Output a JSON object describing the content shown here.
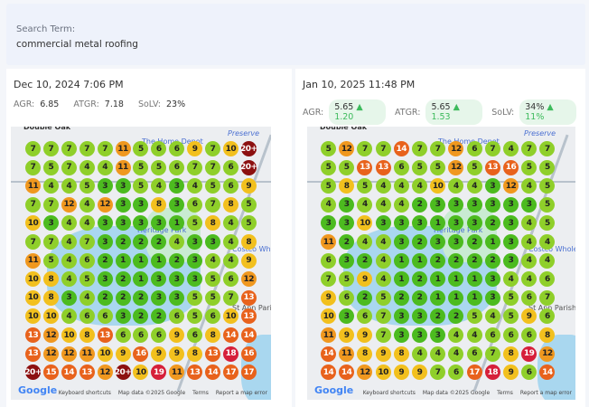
{
  "search": {
    "label": "Search Term:",
    "value": "commercial metal roofing"
  },
  "map_labels": {
    "home_depot": "The Home Depot",
    "preserve": "Preserve",
    "heritage": "Heritage Park",
    "costco": "Costco Wholesale",
    "st_ann": "St Ann Parish",
    "double_oak": "Double Oak",
    "google": "Google",
    "shortcuts": "Keyboard shortcuts",
    "mapdata": "Map data ©2025 Google",
    "terms": "Terms",
    "report": "Report a map error"
  },
  "scans": [
    {
      "date": "Dec 10, 2024 7:06 PM",
      "agr_label": "AGR:",
      "agr": "6.85",
      "atgr_label": "ATGR:",
      "atgr": "7.18",
      "solv_label": "SoLV:",
      "solv": "23%",
      "grid": [
        [
          "7",
          "7",
          "7",
          "7",
          "7",
          "11",
          "5",
          "6",
          "6",
          "9",
          "7",
          "10",
          "20+"
        ],
        [
          "7",
          "5",
          "7",
          "4",
          "4",
          "11",
          "5",
          "5",
          "6",
          "7",
          "7",
          "6",
          "20+"
        ],
        [
          "11",
          "4",
          "4",
          "5",
          "3",
          "3",
          "5",
          "4",
          "3",
          "4",
          "5",
          "6",
          "9"
        ],
        [
          "7",
          "7",
          "12",
          "4",
          "12",
          "3",
          "3",
          "8",
          "3",
          "6",
          "7",
          "8",
          "5"
        ],
        [
          "10",
          "3",
          "4",
          "4",
          "3",
          "3",
          "3",
          "3",
          "1",
          "5",
          "8",
          "4",
          "5"
        ],
        [
          "7",
          "7",
          "4",
          "7",
          "3",
          "2",
          "2",
          "2",
          "4",
          "3",
          "3",
          "4",
          "8"
        ],
        [
          "11",
          "5",
          "4",
          "6",
          "2",
          "1",
          "1",
          "1",
          "2",
          "3",
          "4",
          "4",
          "9"
        ],
        [
          "10",
          "8",
          "4",
          "5",
          "3",
          "2",
          "1",
          "3",
          "3",
          "3",
          "5",
          "6",
          "12"
        ],
        [
          "10",
          "8",
          "3",
          "4",
          "2",
          "2",
          "2",
          "3",
          "3",
          "5",
          "5",
          "7",
          "13"
        ],
        [
          "10",
          "10",
          "4",
          "6",
          "6",
          "3",
          "2",
          "2",
          "6",
          "5",
          "6",
          "10",
          "13"
        ],
        [
          "13",
          "12",
          "10",
          "8",
          "13",
          "6",
          "6",
          "6",
          "9",
          "6",
          "8",
          "14",
          "14"
        ],
        [
          "13",
          "12",
          "12",
          "11",
          "10",
          "9",
          "16",
          "9",
          "9",
          "8",
          "13",
          "18",
          "16"
        ],
        [
          "20+",
          "15",
          "14",
          "13",
          "12",
          "20+",
          "10",
          "19",
          "11",
          "13",
          "14",
          "17",
          "17"
        ]
      ]
    },
    {
      "date": "Jan 10, 2025 11:48 PM",
      "agr_label": "AGR:",
      "agr": "5.65",
      "agr_delta": "▲ 1.20",
      "atgr_label": "ATGR:",
      "atgr": "5.65",
      "atgr_delta": "▲ 1.53",
      "solv_label": "SoLV:",
      "solv": "34%",
      "solv_delta": "▲ 11%",
      "grid": [
        [
          "5",
          "12",
          "7",
          "7",
          "14",
          "7",
          "7",
          "12",
          "6",
          "7",
          "4",
          "7",
          "7"
        ],
        [
          "5",
          "5",
          "13",
          "13",
          "6",
          "5",
          "5",
          "12",
          "5",
          "13",
          "16",
          "5",
          "5"
        ],
        [
          "5",
          "8",
          "5",
          "4",
          "4",
          "4",
          "10",
          "4",
          "4",
          "3",
          "12",
          "4",
          "5"
        ],
        [
          "4",
          "3",
          "4",
          "4",
          "4",
          "2",
          "3",
          "3",
          "3",
          "3",
          "3",
          "3",
          "5"
        ],
        [
          "3",
          "3",
          "10",
          "3",
          "3",
          "3",
          "1",
          "3",
          "3",
          "2",
          "3",
          "4",
          "5"
        ],
        [
          "11",
          "2",
          "4",
          "4",
          "3",
          "2",
          "3",
          "3",
          "2",
          "1",
          "3",
          "4",
          "4"
        ],
        [
          "6",
          "3",
          "2",
          "4",
          "1",
          "1",
          "2",
          "2",
          "2",
          "2",
          "3",
          "4",
          "4"
        ],
        [
          "7",
          "5",
          "9",
          "4",
          "1",
          "2",
          "1",
          "1",
          "1",
          "3",
          "4",
          "4",
          "6"
        ],
        [
          "9",
          "6",
          "2",
          "5",
          "2",
          "2",
          "1",
          "1",
          "1",
          "3",
          "5",
          "6",
          "7"
        ],
        [
          "10",
          "3",
          "6",
          "7",
          "3",
          "3",
          "2",
          "2",
          "5",
          "4",
          "5",
          "9",
          "6"
        ],
        [
          "11",
          "9",
          "9",
          "7",
          "3",
          "3",
          "3",
          "4",
          "4",
          "6",
          "6",
          "6",
          "8"
        ],
        [
          "14",
          "11",
          "8",
          "9",
          "8",
          "4",
          "4",
          "4",
          "6",
          "7",
          "8",
          "19",
          "12"
        ],
        [
          "14",
          "14",
          "12",
          "10",
          "9",
          "9",
          "7",
          "6",
          "17",
          "18",
          "9",
          "6",
          "14"
        ]
      ]
    }
  ],
  "colors": {
    "top3": "#4cbb1f",
    "top7": "#8fcf2a",
    "top10": "#f2c01e",
    "top12": "#f0981f",
    "top17": "#e8621c",
    "top19": "#d61f3a",
    "over20": "#8c1010",
    "delta": "#3dbb5c"
  }
}
